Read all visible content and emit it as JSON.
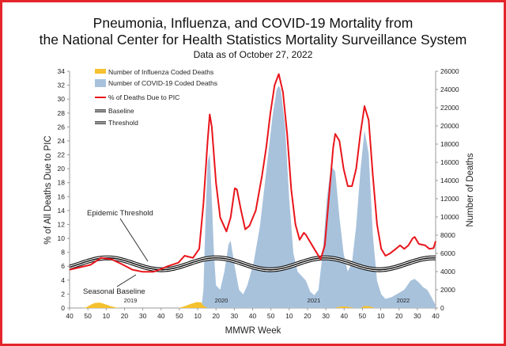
{
  "title_line1": "Pneumonia, Influenza, and COVID-19 Mortality from",
  "title_line2": "the National Center for Health Statistics Mortality Surveillance System",
  "subtitle": "Data as of October 27, 2022",
  "annotations": {
    "threshold": "Epidemic Threshold",
    "baseline": "Seasonal Baseline"
  },
  "colors": {
    "frame": "#e3262b",
    "influenza": "#f5c12e",
    "covid": "#a8c2dc",
    "pic": "#e8151b",
    "curves": "#111111"
  },
  "chart_data": {
    "type": "area",
    "xlabel": "MMWR Week",
    "ylabel": "% of All Deaths Due to PIC",
    "y2label": "Number of Deaths",
    "ylim": [
      0,
      34
    ],
    "y2lim": [
      0,
      26000
    ],
    "yticks": [
      "0",
      "2",
      "4",
      "6",
      "8",
      "10",
      "12",
      "14",
      "16",
      "18",
      "20",
      "22",
      "24",
      "26",
      "28",
      "30",
      "32",
      "34"
    ],
    "y2ticks": [
      "0",
      "2000",
      "4000",
      "6000",
      "8000",
      "10000",
      "12000",
      "14000",
      "16000",
      "18000",
      "20000",
      "22000",
      "24000",
      "26000"
    ],
    "xticks": [
      "40",
      "50",
      "10",
      "20",
      "30",
      "40",
      "50",
      "10",
      "20",
      "30",
      "40",
      "50",
      "10",
      "20",
      "30",
      "40",
      "50",
      "10",
      "20",
      "30",
      "40"
    ],
    "year_labels": [
      "2019",
      "2020",
      "2021",
      "2022"
    ],
    "legend": {
      "placement": "top-left",
      "entries": [
        "Number of Influenza Coded Deaths",
        "Number of COVID-19 Coded Deaths",
        "% of Deaths Due to PIC",
        "Baseline",
        "Threshold"
      ]
    },
    "series": [
      {
        "name": "% of Deaths Due to PIC",
        "axis": "left",
        "points": [
          [
            0,
            5.5
          ],
          [
            10,
            6.2
          ],
          [
            15,
            7.2
          ],
          [
            20,
            7.0
          ],
          [
            25,
            6.3
          ],
          [
            30,
            5.5
          ],
          [
            35,
            5.2
          ],
          [
            40,
            5.2
          ],
          [
            43,
            5.5
          ],
          [
            47,
            6.0
          ],
          [
            52,
            6.5
          ],
          [
            55,
            7.5
          ],
          [
            59,
            7.2
          ],
          [
            62,
            8.5
          ],
          [
            64,
            15
          ],
          [
            66,
            24
          ],
          [
            67,
            27.8
          ],
          [
            68,
            26
          ],
          [
            70,
            18
          ],
          [
            72,
            13
          ],
          [
            75,
            11
          ],
          [
            77,
            13
          ],
          [
            79,
            17.2
          ],
          [
            80,
            17
          ],
          [
            82,
            14
          ],
          [
            84,
            11.3
          ],
          [
            86,
            11.8
          ],
          [
            89,
            14
          ],
          [
            92,
            19
          ],
          [
            94,
            23
          ],
          [
            96,
            28
          ],
          [
            98,
            32
          ],
          [
            100,
            33.6
          ],
          [
            102,
            31
          ],
          [
            104,
            25
          ],
          [
            106,
            17
          ],
          [
            108,
            12
          ],
          [
            110,
            9.8
          ],
          [
            112,
            10.8
          ],
          [
            113,
            10.5
          ],
          [
            114,
            10
          ],
          [
            117,
            8.5
          ],
          [
            120,
            7
          ],
          [
            122,
            9
          ],
          [
            124,
            16
          ],
          [
            126,
            23
          ],
          [
            127,
            25
          ],
          [
            129,
            24
          ],
          [
            131,
            20
          ],
          [
            133,
            17.5
          ],
          [
            135,
            17.5
          ],
          [
            137,
            20
          ],
          [
            139,
            25
          ],
          [
            141,
            29
          ],
          [
            143,
            27
          ],
          [
            145,
            19
          ],
          [
            147,
            12
          ],
          [
            149,
            8.5
          ],
          [
            151,
            7.5
          ],
          [
            153,
            7.8
          ],
          [
            156,
            8.5
          ],
          [
            158,
            9
          ],
          [
            160,
            8.5
          ],
          [
            162,
            9
          ],
          [
            164,
            10
          ],
          [
            165,
            10.2
          ],
          [
            167,
            9.2
          ],
          [
            170,
            9
          ],
          [
            172,
            8.5
          ],
          [
            174,
            8.6
          ],
          [
            175,
            9.6
          ]
        ]
      },
      {
        "name": "Number of COVID-19 Coded Deaths",
        "axis": "right",
        "points": [
          [
            63,
            0
          ],
          [
            64,
            2000
          ],
          [
            65,
            10000
          ],
          [
            66,
            16000
          ],
          [
            67,
            17000
          ],
          [
            68,
            12000
          ],
          [
            69,
            6000
          ],
          [
            70,
            2500
          ],
          [
            72,
            2000
          ],
          [
            74,
            4000
          ],
          [
            76,
            7000
          ],
          [
            77,
            7400
          ],
          [
            79,
            4500
          ],
          [
            81,
            2000
          ],
          [
            83,
            1500
          ],
          [
            85,
            2500
          ],
          [
            88,
            5000
          ],
          [
            91,
            9000
          ],
          [
            94,
            15000
          ],
          [
            97,
            21000
          ],
          [
            99,
            24000
          ],
          [
            100,
            24400
          ],
          [
            101,
            24000
          ],
          [
            103,
            20000
          ],
          [
            105,
            12000
          ],
          [
            107,
            6000
          ],
          [
            109,
            4000
          ],
          [
            111,
            3500
          ],
          [
            113,
            3000
          ],
          [
            115,
            1800
          ],
          [
            117,
            1400
          ],
          [
            119,
            2000
          ],
          [
            121,
            6000
          ],
          [
            123,
            12000
          ],
          [
            125,
            15600
          ],
          [
            127,
            15000
          ],
          [
            129,
            10000
          ],
          [
            131,
            6000
          ],
          [
            133,
            4000
          ],
          [
            135,
            5000
          ],
          [
            137,
            9000
          ],
          [
            139,
            15000
          ],
          [
            141,
            19500
          ],
          [
            143,
            17000
          ],
          [
            145,
            8000
          ],
          [
            147,
            3000
          ],
          [
            149,
            1500
          ],
          [
            151,
            1000
          ],
          [
            154,
            1200
          ],
          [
            157,
            1600
          ],
          [
            160,
            2000
          ],
          [
            163,
            3000
          ],
          [
            165,
            3200
          ],
          [
            167,
            2800
          ],
          [
            169,
            2300
          ],
          [
            171,
            2000
          ],
          [
            173,
            1200
          ],
          [
            175,
            300
          ],
          [
            175,
            0
          ]
        ]
      },
      {
        "name": "Number of Influenza Coded Deaths",
        "axis": "right",
        "points": [
          [
            6,
            0
          ],
          [
            8,
            80
          ],
          [
            10,
            350
          ],
          [
            12,
            550
          ],
          [
            14,
            600
          ],
          [
            16,
            500
          ],
          [
            19,
            250
          ],
          [
            22,
            60
          ],
          [
            24,
            0
          ],
          [
            52,
            0
          ],
          [
            55,
            200
          ],
          [
            58,
            450
          ],
          [
            61,
            650
          ],
          [
            63,
            600
          ],
          [
            64,
            250
          ],
          [
            66,
            0
          ],
          [
            127,
            0
          ],
          [
            128,
            100
          ],
          [
            131,
            180
          ],
          [
            134,
            100
          ],
          [
            136,
            0
          ],
          [
            139,
            0
          ],
          [
            141,
            220
          ],
          [
            143,
            200
          ],
          [
            145,
            80
          ],
          [
            146,
            0
          ]
        ]
      },
      {
        "name": "Baseline",
        "axis": "left",
        "center": 6.2,
        "amplitude": 0.85,
        "period_weeks": 52,
        "peak_week": 18
      },
      {
        "name": "Threshold",
        "axis": "left",
        "center": 6.5,
        "amplitude": 0.85,
        "period_weeks": 52,
        "peak_week": 18
      }
    ]
  }
}
